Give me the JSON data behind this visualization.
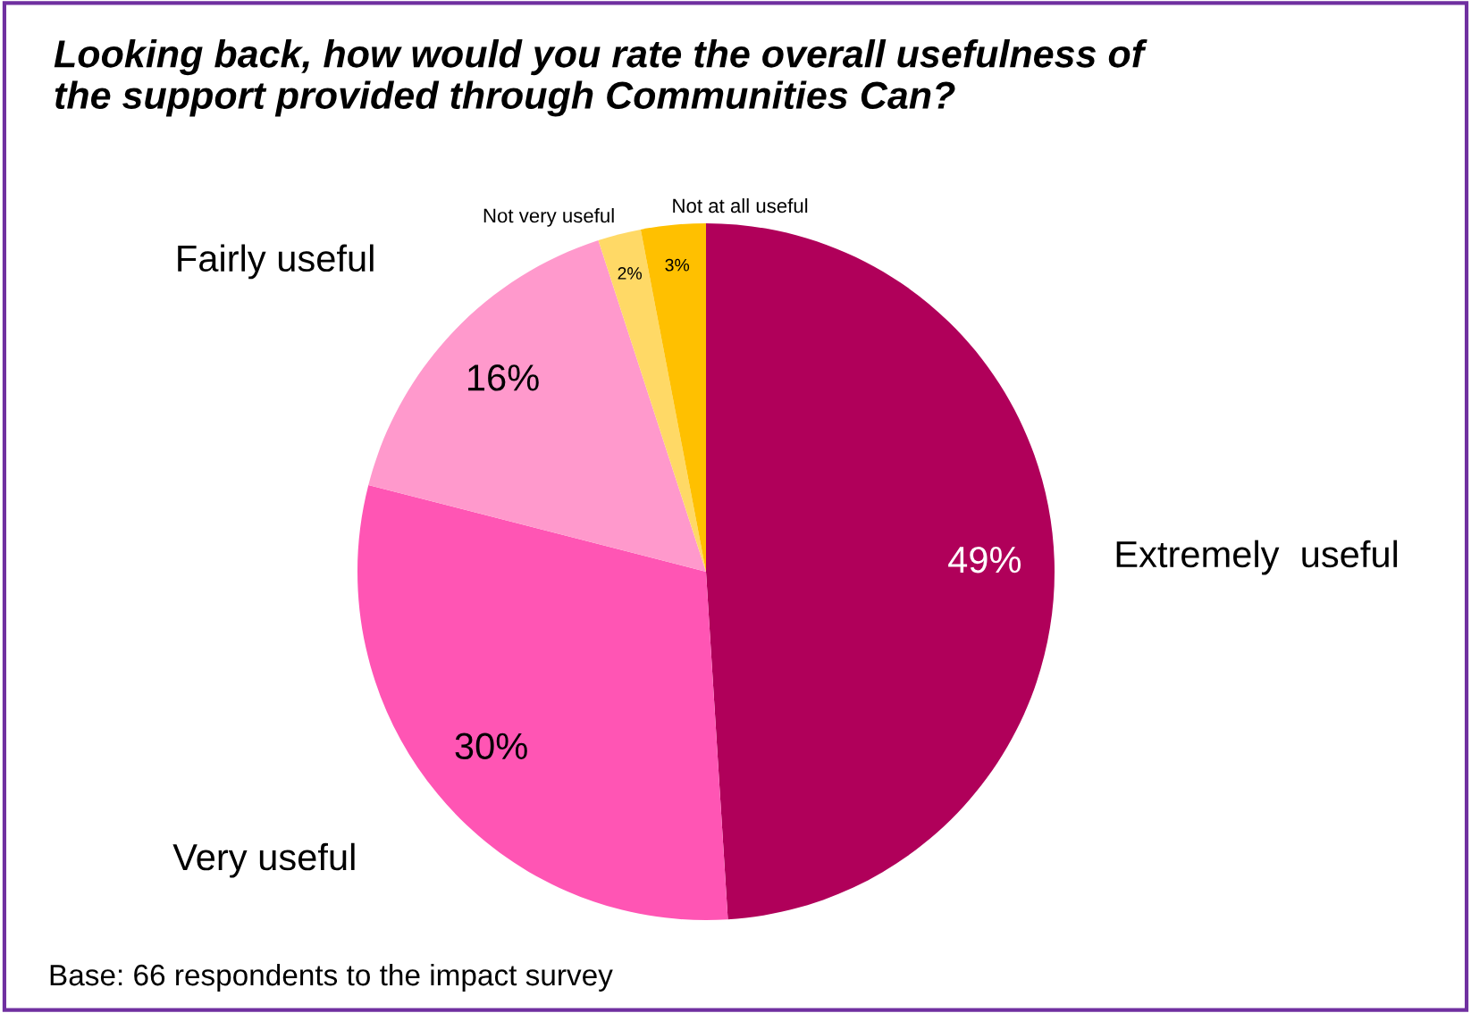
{
  "chart_data": {
    "type": "pie",
    "title": "Looking back, how would you rate the overall usefulness of\nthe support provided through Communities Can?",
    "categories": [
      "Extremely  useful",
      "Very useful",
      "Fairly useful",
      "Not very useful",
      "Not at all useful"
    ],
    "values": [
      49,
      30,
      16,
      2,
      3
    ],
    "colors": [
      "#b0005a",
      "#ff55b4",
      "#ff99cc",
      "#ffd966",
      "#ffc000"
    ],
    "value_labels": [
      "49%",
      "30%",
      "16%",
      "2%",
      "3%"
    ],
    "annotations": [
      "Base: 66 respondents to the impact survey"
    ],
    "legend": false
  }
}
